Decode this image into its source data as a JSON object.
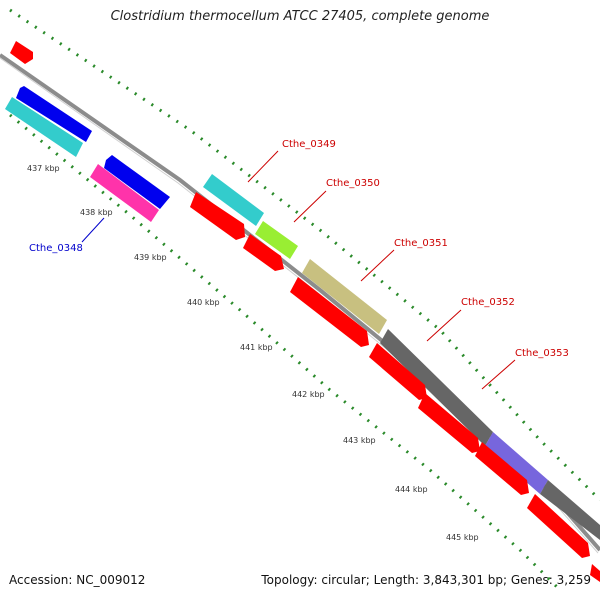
{
  "title": "Clostridium thermocellum ATCC 27405, complete genome",
  "footer": {
    "accession": "Accession: NC_009012",
    "topology_stats": "Topology: circular; Length: 3,843,301 bp; Genes: 3,259"
  },
  "ruler": {
    "unit": "kbp",
    "ticks": [
      "437 kbp",
      "438 kbp",
      "439 kbp",
      "440 kbp",
      "441 kbp",
      "442 kbp",
      "443 kbp",
      "444 kbp",
      "445 kbp"
    ]
  },
  "gene_labels": [
    {
      "name": "Cthe_0348",
      "color": "#0000cc"
    },
    {
      "name": "Cthe_0349",
      "color": "#cc0000"
    },
    {
      "name": "Cthe_0350",
      "color": "#cc0000"
    },
    {
      "name": "Cthe_0351",
      "color": "#cc0000"
    },
    {
      "name": "Cthe_0352",
      "color": "#cc0000"
    },
    {
      "name": "Cthe_0353",
      "color": "#cc0000"
    }
  ],
  "colors": {
    "backbone": "#8c8c8c",
    "tick_marks": "#2a8a2a",
    "cds_red": "#ff0000",
    "cds_blue": "#0000ee",
    "cds_cyan": "#33cccc",
    "cds_magenta": "#ff33aa",
    "cds_lime": "#99ee33",
    "cds_khaki": "#c8c080",
    "cds_gray": "#666666",
    "cds_purple": "#7766dd"
  }
}
